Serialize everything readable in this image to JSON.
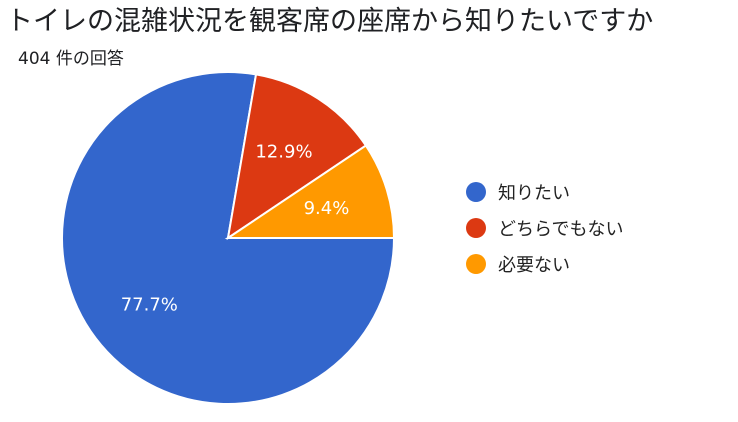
{
  "header": {
    "title": "トイレの混雑状況を観客席の座席から知りたいですか",
    "response_count": "404 件の回答"
  },
  "chart_data": {
    "type": "pie",
    "title": "トイレの混雑状況を観客席の座席から知りたいですか",
    "subtitle": "404 件の回答",
    "legend_position": "right",
    "slices": [
      {
        "label": "知りたい",
        "value": 77.7,
        "value_label": "77.7%",
        "color": "#3366cc"
      },
      {
        "label": "どちらでもない",
        "value": 12.9,
        "value_label": "12.9%",
        "color": "#dc3912"
      },
      {
        "label": "必要ない",
        "value": 9.4,
        "value_label": "9.4%",
        "color": "#ff9900"
      }
    ]
  }
}
